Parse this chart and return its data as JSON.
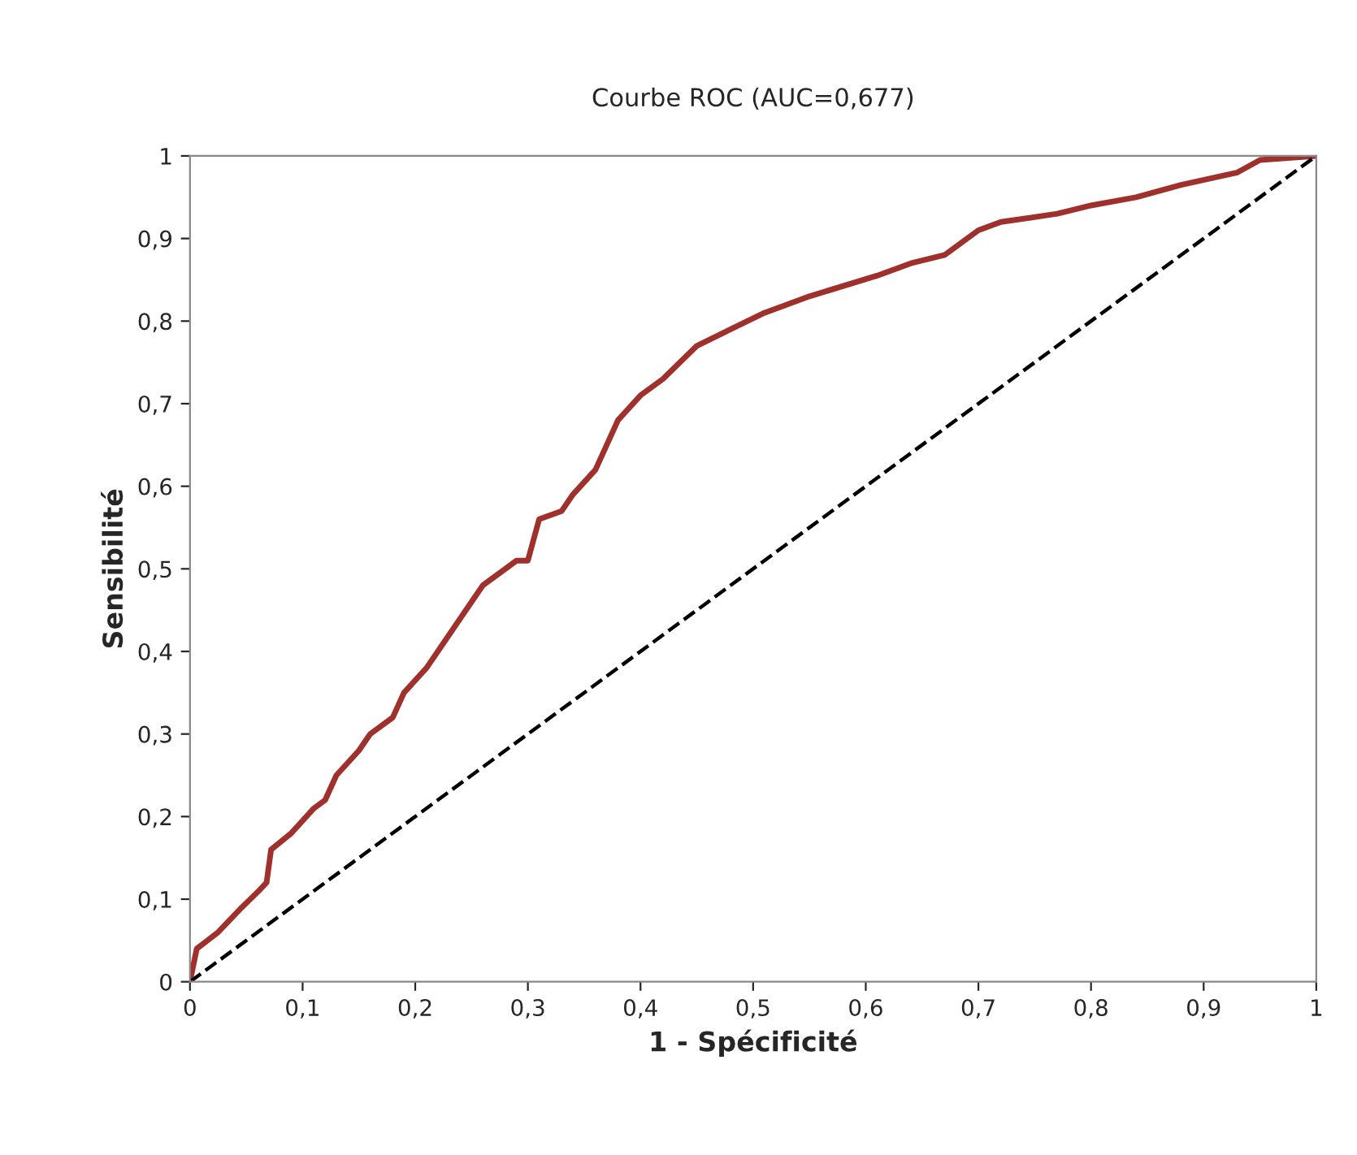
{
  "chart_data": {
    "type": "line",
    "title": "Courbe ROC (AUC=0,677)",
    "xlabel": "1 - Spécificité",
    "ylabel": "Sensibilité",
    "xlim": [
      0,
      1
    ],
    "ylim": [
      0,
      1
    ],
    "xticks": [
      0,
      {
        "value": 0.1,
        "label": "0,1"
      },
      {
        "value": 0.2,
        "label": "0,2"
      },
      {
        "value": 0.3,
        "label": "0,3"
      },
      {
        "value": 0.4,
        "label": "0,4"
      },
      {
        "value": 0.5,
        "label": "0,5"
      },
      {
        "value": 0.6,
        "label": "0,6"
      },
      {
        "value": 0.7,
        "label": "0,7"
      },
      {
        "value": 0.8,
        "label": "0,8"
      },
      {
        "value": 0.9,
        "label": "0,9"
      },
      1
    ],
    "yticks": [
      0,
      {
        "value": 0.1,
        "label": "0,1"
      },
      {
        "value": 0.2,
        "label": "0,2"
      },
      {
        "value": 0.3,
        "label": "0,3"
      },
      {
        "value": 0.4,
        "label": "0,4"
      },
      {
        "value": 0.5,
        "label": "0,5"
      },
      {
        "value": 0.6,
        "label": "0,6"
      },
      {
        "value": 0.7,
        "label": "0,7"
      },
      {
        "value": 0.8,
        "label": "0,8"
      },
      {
        "value": 0.9,
        "label": "0,9"
      },
      1
    ],
    "grid": false,
    "legend": false,
    "marker": "none",
    "series": [
      {
        "color": "#a0302c",
        "line_style": "solid",
        "x": [
          0,
          0.006,
          0.025,
          0.046,
          0.061,
          0.068,
          0.072,
          0.09,
          0.11,
          0.12,
          0.13,
          0.15,
          0.16,
          0.18,
          0.19,
          0.21,
          0.23,
          0.25,
          0.26,
          0.28,
          0.29,
          0.3,
          0.31,
          0.33,
          0.34,
          0.36,
          0.37,
          0.38,
          0.4,
          0.42,
          0.45,
          0.48,
          0.51,
          0.55,
          0.61,
          0.64,
          0.67,
          0.7,
          0.72,
          0.77,
          0.8,
          0.84,
          0.88,
          0.93,
          0.95,
          1
        ],
        "values": [
          0,
          0.04,
          0.06,
          0.09,
          0.11,
          0.12,
          0.16,
          0.18,
          0.21,
          0.22,
          0.25,
          0.28,
          0.3,
          0.32,
          0.35,
          0.38,
          0.42,
          0.46,
          0.48,
          0.5,
          0.51,
          0.51,
          0.56,
          0.57,
          0.59,
          0.62,
          0.65,
          0.68,
          0.71,
          0.73,
          0.77,
          0.79,
          0.81,
          0.83,
          0.855,
          0.87,
          0.88,
          0.91,
          0.92,
          0.93,
          0.94,
          0.95,
          0.965,
          0.98,
          0.995,
          1
        ]
      },
      {
        "color": "#000000",
        "line_style": "dashed",
        "x": [
          0,
          1
        ],
        "values": [
          0,
          1
        ]
      }
    ]
  }
}
